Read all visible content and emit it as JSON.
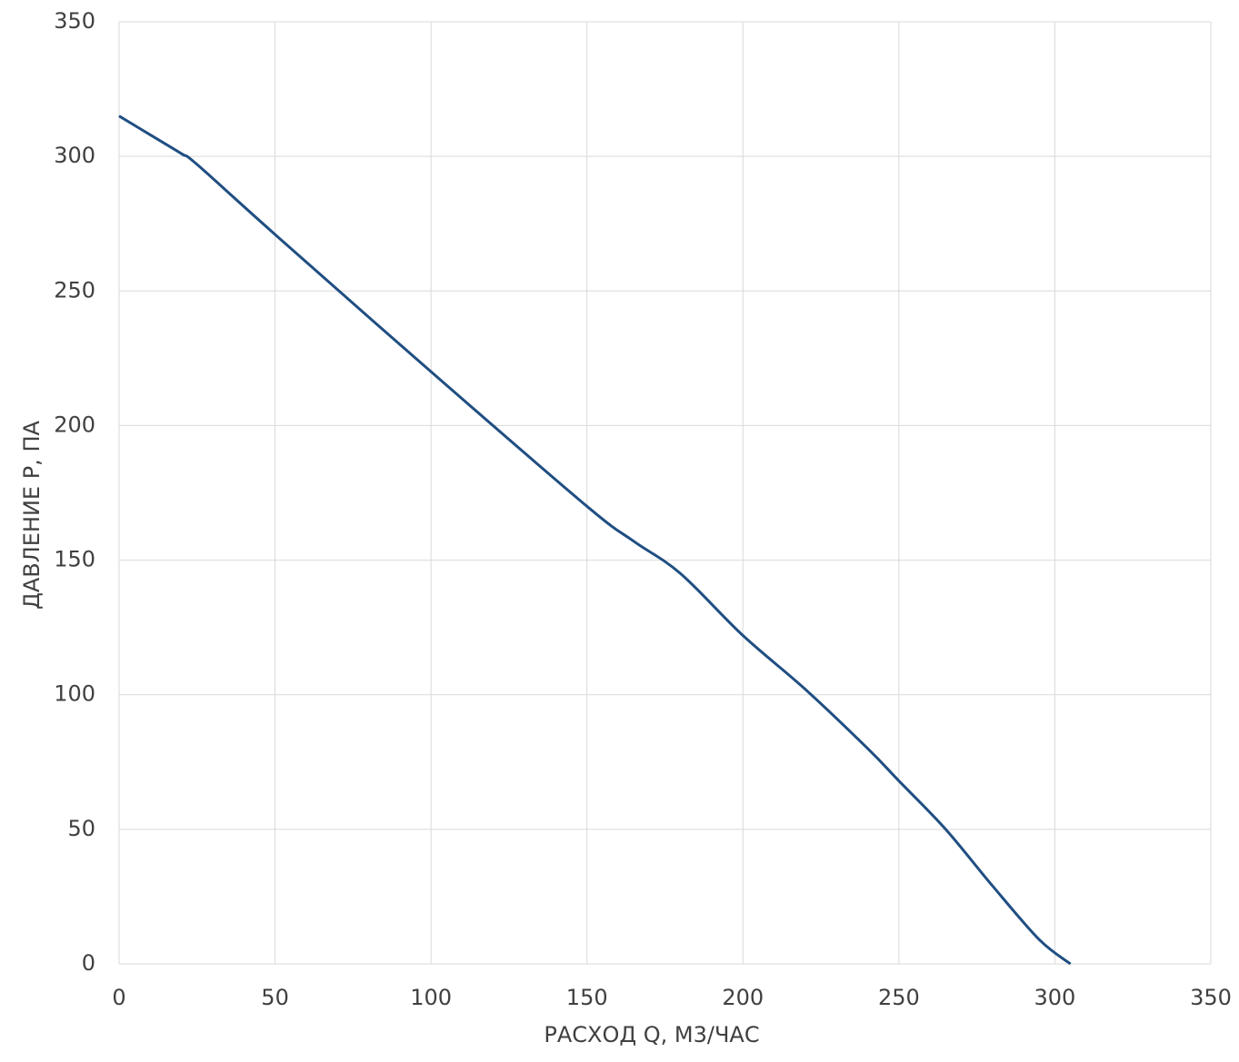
{
  "chart_data": {
    "type": "line",
    "x_label": "РАСХОД Q, М3/ЧАС",
    "y_label": "ДАВЛЕНИЕ P, ПА",
    "x": [
      0,
      10,
      20,
      25,
      50,
      100,
      150,
      165,
      180,
      200,
      220,
      240,
      250,
      265,
      280,
      295,
      305
    ],
    "series": [
      {
        "color": "#1f4e82",
        "values": [
          315,
          308,
          301,
          297,
          271,
          220,
          170,
          157,
          145,
          122,
          102,
          80,
          68,
          50,
          29,
          9,
          0
        ]
      }
    ],
    "xlim": [
      0,
      350
    ],
    "xticks": [
      0,
      50,
      100,
      150,
      200,
      250,
      300,
      350
    ],
    "ylim": [
      0,
      350
    ],
    "yticks": [
      0,
      50,
      100,
      150,
      200,
      250,
      300,
      350
    ],
    "grid": true
  }
}
